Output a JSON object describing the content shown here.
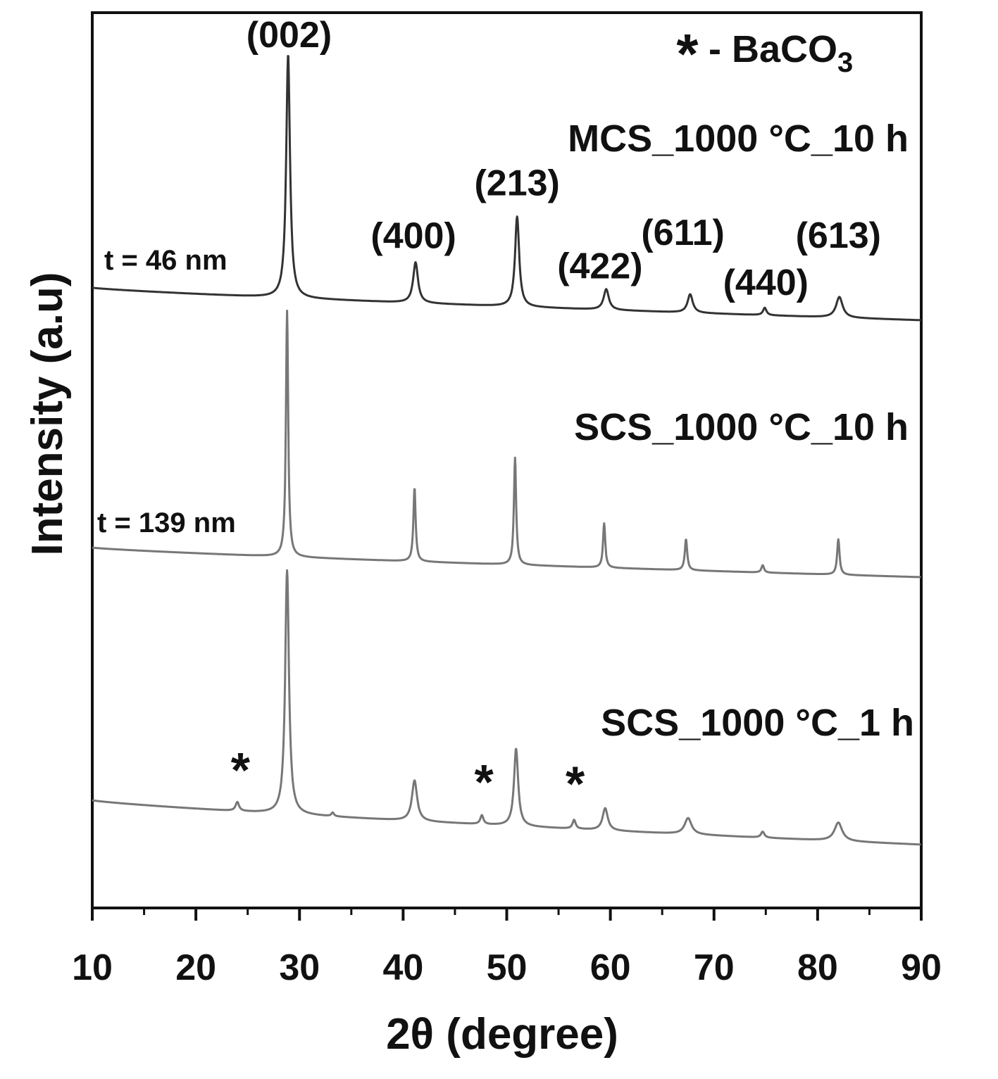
{
  "chart_data": {
    "type": "line",
    "xlabel": "2θ (degree)",
    "ylabel": "Intensity (a.u)",
    "xlim": [
      10,
      90
    ],
    "xticks": [
      10,
      20,
      30,
      40,
      50,
      60,
      70,
      80,
      90
    ],
    "grid": false,
    "legend_note": {
      "star": "*",
      "text": "- BaCO",
      "sub": "3"
    },
    "series": [
      {
        "name": "MCS_1000 °C_10 h",
        "annotation": "t = 46 nm",
        "color": "#333333",
        "baseline_start": 0.44,
        "baseline_end": 0.0,
        "peaks": [
          {
            "x": 28.9,
            "h": 3.3,
            "w": 0.22
          },
          {
            "x": 41.2,
            "h": 0.55,
            "w": 0.28
          },
          {
            "x": 51.0,
            "h": 1.22,
            "w": 0.24
          },
          {
            "x": 59.6,
            "h": 0.28,
            "w": 0.3
          },
          {
            "x": 67.7,
            "h": 0.25,
            "w": 0.3
          },
          {
            "x": 74.9,
            "h": 0.1,
            "w": 0.2
          },
          {
            "x": 82.1,
            "h": 0.28,
            "w": 0.38
          }
        ]
      },
      {
        "name": "SCS_1000 °C_10 h",
        "annotation": "t = 139 nm",
        "color": "#777777",
        "baseline_start": 0.4,
        "baseline_end": 0.0,
        "peaks": [
          {
            "x": 28.8,
            "h": 3.33,
            "w": 0.13
          },
          {
            "x": 41.1,
            "h": 1.0,
            "w": 0.13
          },
          {
            "x": 50.8,
            "h": 1.45,
            "w": 0.13
          },
          {
            "x": 59.4,
            "h": 0.6,
            "w": 0.13
          },
          {
            "x": 67.3,
            "h": 0.42,
            "w": 0.14
          },
          {
            "x": 74.7,
            "h": 0.1,
            "w": 0.15
          },
          {
            "x": 82.0,
            "h": 0.48,
            "w": 0.14
          }
        ]
      },
      {
        "name": "SCS_1000 °C_1 h",
        "annotation": "",
        "color": "#777777",
        "baseline_start": 0.6,
        "baseline_end": 0.0,
        "peaks": [
          {
            "x": 24.0,
            "h": 0.12,
            "w": 0.2
          },
          {
            "x": 28.8,
            "h": 3.3,
            "w": 0.22
          },
          {
            "x": 33.2,
            "h": 0.05,
            "w": 0.15
          },
          {
            "x": 41.1,
            "h": 0.55,
            "w": 0.3
          },
          {
            "x": 47.6,
            "h": 0.12,
            "w": 0.18
          },
          {
            "x": 50.9,
            "h": 1.05,
            "w": 0.24
          },
          {
            "x": 56.5,
            "h": 0.12,
            "w": 0.18
          },
          {
            "x": 59.5,
            "h": 0.3,
            "w": 0.3
          },
          {
            "x": 67.5,
            "h": 0.22,
            "w": 0.4
          },
          {
            "x": 74.7,
            "h": 0.08,
            "w": 0.2
          },
          {
            "x": 82.0,
            "h": 0.25,
            "w": 0.45
          }
        ]
      }
    ],
    "annotations": [
      {
        "text": "(002)",
        "x": 29.0,
        "series": 0
      },
      {
        "text": "(400)",
        "x": 41.0,
        "series": 0
      },
      {
        "text": "(213)",
        "x": 51.0,
        "series": 0
      },
      {
        "text": "(422)",
        "x": 59.0,
        "series": 0
      },
      {
        "text": "(611)",
        "x": 67.0,
        "series": 0
      },
      {
        "text": "(440)",
        "x": 75.0,
        "series": 0
      },
      {
        "text": "(613)",
        "x": 82.0,
        "series": 0
      },
      {
        "text": "*",
        "x": 24.3,
        "series": 2
      },
      {
        "text": "*",
        "x": 47.8,
        "series": 2
      },
      {
        "text": "*",
        "x": 56.6,
        "series": 2
      }
    ]
  }
}
